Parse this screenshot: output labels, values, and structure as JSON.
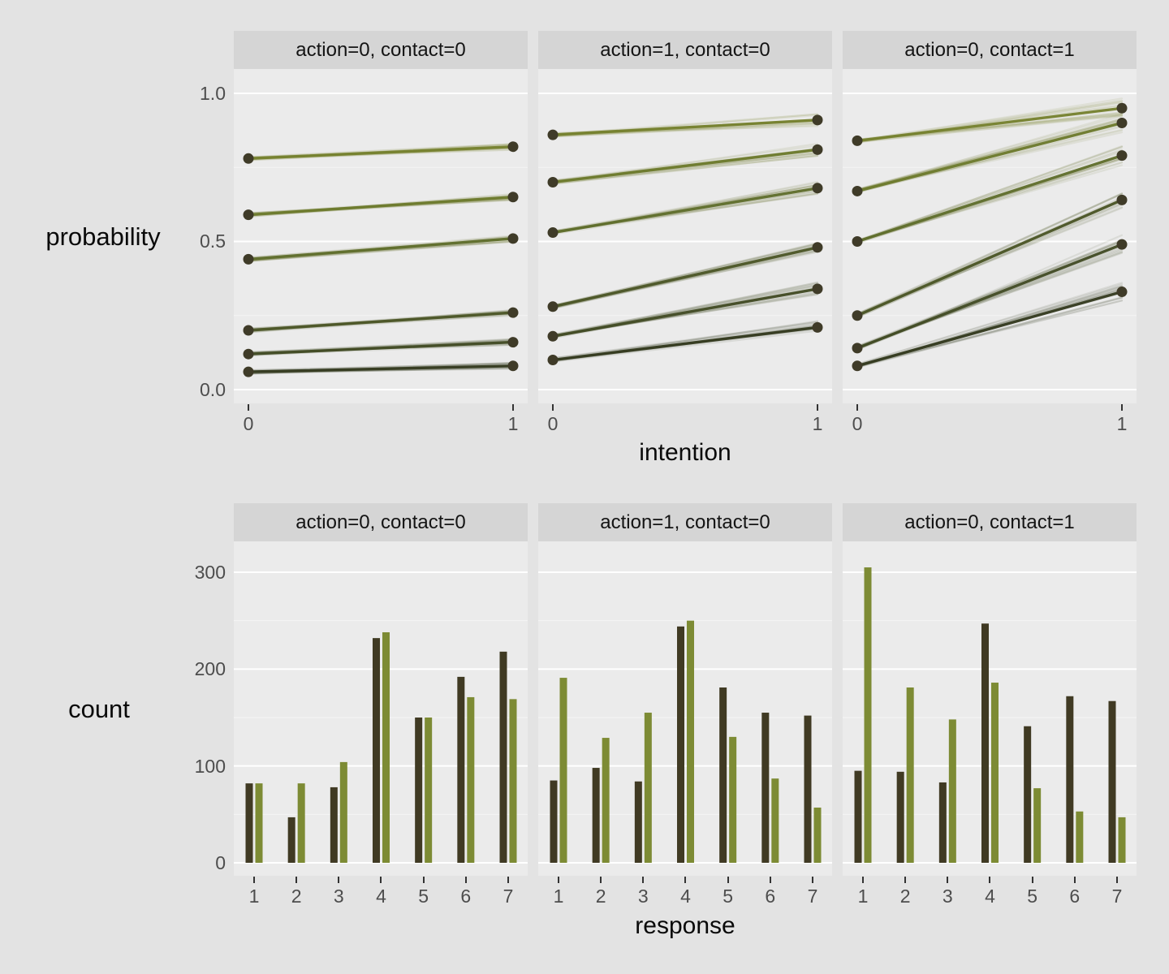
{
  "style": {
    "page_bg": "#e3e3e3",
    "panel_bg": "#ebebeb",
    "strip_bg": "#d5d5d5",
    "grid_major": "#ffffff",
    "grid_minor": "#f4f4f4",
    "point_color": "#3f3b28",
    "bar_dark": "#403a23",
    "bar_olive": "#7d8b34",
    "line_colors": [
      "#74802c",
      "#6b792b",
      "#5e6d2a",
      "#4b5526",
      "#404a23",
      "#33391e"
    ]
  },
  "chart_data": [
    {
      "type": "line",
      "ylabel": "probability",
      "xlabel": "intention",
      "xticks": [
        "0",
        "1"
      ],
      "yticks": [
        "1.0",
        "0.5",
        "0.0"
      ],
      "ylim": [
        0,
        1
      ],
      "x": [
        0,
        1
      ],
      "grid": true,
      "legend": "none",
      "facets": [
        {
          "label": "action=0, contact=0",
          "lines": [
            [
              0.78,
              0.82
            ],
            [
              0.59,
              0.65
            ],
            [
              0.44,
              0.51
            ],
            [
              0.2,
              0.26
            ],
            [
              0.12,
              0.16
            ],
            [
              0.06,
              0.08
            ]
          ]
        },
        {
          "label": "action=1, contact=0",
          "lines": [
            [
              0.86,
              0.91
            ],
            [
              0.7,
              0.81
            ],
            [
              0.53,
              0.68
            ],
            [
              0.28,
              0.48
            ],
            [
              0.18,
              0.34
            ],
            [
              0.1,
              0.21
            ]
          ]
        },
        {
          "label": "action=0, contact=1",
          "lines": [
            [
              0.84,
              0.95
            ],
            [
              0.67,
              0.9
            ],
            [
              0.5,
              0.79
            ],
            [
              0.25,
              0.64
            ],
            [
              0.14,
              0.49
            ],
            [
              0.08,
              0.33
            ]
          ]
        }
      ]
    },
    {
      "type": "bar",
      "ylabel": "count",
      "xlabel": "response",
      "categories": [
        "1",
        "2",
        "3",
        "4",
        "5",
        "6",
        "7"
      ],
      "xticks": [
        "1",
        "2",
        "3",
        "4",
        "5",
        "6",
        "7"
      ],
      "yticks": [
        "300",
        "200",
        "100",
        "0"
      ],
      "ylim": [
        0,
        310
      ],
      "grid": true,
      "legend": "none",
      "facets": [
        {
          "label": "action=0, contact=0",
          "series": [
            {
              "color": "dark",
              "values": [
                82,
                47,
                78,
                232,
                150,
                192,
                218
              ]
            },
            {
              "color": "olive",
              "values": [
                82,
                82,
                104,
                238,
                150,
                171,
                169
              ]
            }
          ]
        },
        {
          "label": "action=1, contact=0",
          "series": [
            {
              "color": "dark",
              "values": [
                85,
                98,
                84,
                244,
                181,
                155,
                152
              ]
            },
            {
              "color": "olive",
              "values": [
                191,
                129,
                155,
                250,
                130,
                87,
                57
              ]
            }
          ]
        },
        {
          "label": "action=0, contact=1",
          "series": [
            {
              "color": "dark",
              "values": [
                95,
                94,
                83,
                247,
                141,
                172,
                167
              ]
            },
            {
              "color": "olive",
              "values": [
                305,
                181,
                148,
                186,
                77,
                53,
                47
              ]
            }
          ]
        }
      ]
    }
  ]
}
